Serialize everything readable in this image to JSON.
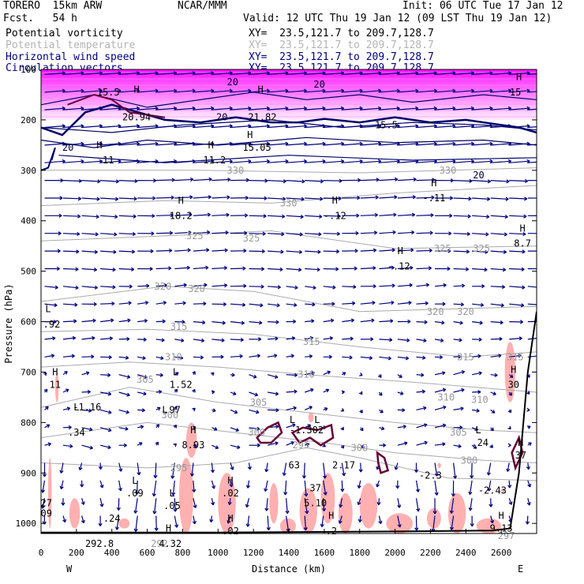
{
  "header": {
    "model": "TORERO  15km ARW",
    "fcst": "Fcst.   54 h",
    "center": "NCAR/MMM",
    "init": "Init: 06 UTC Tue 17 Jan 12",
    "valid": "Valid: 12 UTC Thu 19 Jan 12 (09 LST Thu 19 Jan 12)"
  },
  "legend": [
    {
      "name": "Potential vorticity",
      "xy": "XY=  23.5,121.7 to 209.7,128.7",
      "color": "#000000"
    },
    {
      "name": "Potential temperature",
      "xy": "XY=  23.5,121.7 to 209.7,128.7",
      "color": "#b4b4b4"
    },
    {
      "name": "Horizontal wind speed",
      "xy": "XY=  23.5,121.7 to 209.7,128.7",
      "color": "#000080"
    },
    {
      "name": "Circulation vectors",
      "xy": "XY=  23.5,121.7 to 209.7,128.7",
      "color": "#000080"
    }
  ],
  "chart_data": {
    "type": "cross-section",
    "xlabel": "Distance (km)",
    "ylabel": "Pressure (hPa)",
    "xlim": [
      0,
      2800
    ],
    "ylim": [
      1020,
      100
    ],
    "x_ticks": [
      0,
      200,
      400,
      600,
      800,
      1000,
      1200,
      1400,
      1600,
      1800,
      2000,
      2200,
      2400,
      2600
    ],
    "y_ticks": [
      100,
      200,
      300,
      400,
      500,
      600,
      700,
      800,
      900,
      1000
    ],
    "y_tick_labels": [
      "100",
      "200",
      "300",
      "400",
      "500",
      "600",
      "700",
      "800",
      "900",
      "1000"
    ],
    "left_end": "W",
    "right_end": "E",
    "theta_labels": [
      {
        "x": 1050,
        "p": 300,
        "text": "330"
      },
      {
        "x": 2250,
        "p": 300,
        "text": "330"
      },
      {
        "x": 1350,
        "p": 365,
        "text": "330"
      },
      {
        "x": 820,
        "p": 430,
        "text": "325"
      },
      {
        "x": 1140,
        "p": 435,
        "text": "325"
      },
      {
        "x": 2220,
        "p": 455,
        "text": "325"
      },
      {
        "x": 2440,
        "p": 455,
        "text": "325"
      },
      {
        "x": 640,
        "p": 530,
        "text": "320"
      },
      {
        "x": 830,
        "p": 535,
        "text": "320"
      },
      {
        "x": 2180,
        "p": 580,
        "text": "320"
      },
      {
        "x": 2350,
        "p": 580,
        "text": "320"
      },
      {
        "x": 730,
        "p": 610,
        "text": "315"
      },
      {
        "x": 1480,
        "p": 640,
        "text": "315"
      },
      {
        "x": 2350,
        "p": 670,
        "text": "315"
      },
      {
        "x": 2630,
        "p": 670,
        "text": "315"
      },
      {
        "x": 700,
        "p": 670,
        "text": "310"
      },
      {
        "x": 1450,
        "p": 705,
        "text": "310"
      },
      {
        "x": 2240,
        "p": 750,
        "text": "310"
      },
      {
        "x": 2430,
        "p": 755,
        "text": "310"
      },
      {
        "x": 540,
        "p": 715,
        "text": "305"
      },
      {
        "x": 1180,
        "p": 760,
        "text": "305"
      },
      {
        "x": 2310,
        "p": 820,
        "text": "305"
      },
      {
        "x": 680,
        "p": 785,
        "text": "300"
      },
      {
        "x": 1170,
        "p": 820,
        "text": "300"
      },
      {
        "x": 1750,
        "p": 850,
        "text": "300"
      },
      {
        "x": 2370,
        "p": 875,
        "text": "300"
      },
      {
        "x": 1420,
        "p": 845,
        "text": "295"
      },
      {
        "x": 730,
        "p": 890,
        "text": "295"
      },
      {
        "x": 620,
        "p": 1040,
        "text": "292"
      },
      {
        "x": 2580,
        "p": 1025,
        "text": "297"
      }
    ],
    "speed_labels": [
      {
        "x": 1050,
        "p": 125,
        "text": "20"
      },
      {
        "x": 1540,
        "p": 130,
        "text": "20"
      },
      {
        "x": 990,
        "p": 195,
        "text": "20"
      },
      {
        "x": 120,
        "p": 255,
        "text": "20"
      },
      {
        "x": 2440,
        "p": 310,
        "text": "20"
      }
    ],
    "extrema": [
      {
        "x": 540,
        "p": 140,
        "mark": "H",
        "value": ""
      },
      {
        "x": 380,
        "p": 145,
        "mark": "",
        "value": "15.5"
      },
      {
        "x": 540,
        "p": 195,
        "mark": "",
        "value": "20.94"
      },
      {
        "x": 1240,
        "p": 140,
        "mark": "H",
        "value": ""
      },
      {
        "x": 1250,
        "p": 195,
        "mark": "",
        "value": "21.82"
      },
      {
        "x": 2700,
        "p": 115,
        "mark": "H",
        "value": ""
      },
      {
        "x": 2680,
        "p": 145,
        "mark": "",
        "value": "15"
      },
      {
        "x": 1950,
        "p": 210,
        "mark": "",
        "value": "15.5"
      },
      {
        "x": 330,
        "p": 250,
        "mark": "H",
        "value": ""
      },
      {
        "x": 380,
        "p": 280,
        "mark": "",
        "value": "11"
      },
      {
        "x": 960,
        "p": 250,
        "mark": "H",
        "value": ""
      },
      {
        "x": 980,
        "p": 280,
        "mark": "",
        "value": "11.2"
      },
      {
        "x": 1180,
        "p": 230,
        "mark": "H",
        "value": ""
      },
      {
        "x": 1220,
        "p": 255,
        "mark": "",
        "value": "15.05"
      },
      {
        "x": 790,
        "p": 360,
        "mark": "H",
        "value": ""
      },
      {
        "x": 790,
        "p": 390,
        "mark": "",
        "value": "18.2"
      },
      {
        "x": 1660,
        "p": 360,
        "mark": "H",
        "value": ""
      },
      {
        "x": 1660,
        "p": 390,
        "mark": "",
        "value": "-.12"
      },
      {
        "x": 2220,
        "p": 325,
        "mark": "H",
        "value": ""
      },
      {
        "x": 2220,
        "p": 355,
        "mark": "",
        "value": "-.11"
      },
      {
        "x": 2030,
        "p": 460,
        "mark": "H",
        "value": ""
      },
      {
        "x": 2020,
        "p": 490,
        "mark": "",
        "value": "-.12"
      },
      {
        "x": 2720,
        "p": 415,
        "mark": "H",
        "value": ""
      },
      {
        "x": 2720,
        "p": 445,
        "mark": "",
        "value": "8.7"
      },
      {
        "x": 40,
        "p": 575,
        "mark": "L",
        "value": ""
      },
      {
        "x": 60,
        "p": 605,
        "mark": "",
        "value": ".92"
      },
      {
        "x": 80,
        "p": 700,
        "mark": "H",
        "value": ""
      },
      {
        "x": 80,
        "p": 725,
        "mark": "",
        "value": "11"
      },
      {
        "x": 760,
        "p": 700,
        "mark": "L",
        "value": ""
      },
      {
        "x": 790,
        "p": 725,
        "mark": "",
        "value": "1.52"
      },
      {
        "x": 200,
        "p": 770,
        "mark": "L",
        "value": ""
      },
      {
        "x": 260,
        "p": 770,
        "mark": "",
        "value": "-1.16"
      },
      {
        "x": 700,
        "p": 775,
        "mark": "L",
        "value": ""
      },
      {
        "x": 740,
        "p": 775,
        "mark": "",
        "value": ".97"
      },
      {
        "x": 200,
        "p": 820,
        "mark": "",
        "value": ".34"
      },
      {
        "x": 860,
        "p": 815,
        "mark": "H",
        "value": ""
      },
      {
        "x": 860,
        "p": 845,
        "mark": "",
        "value": "8.93"
      },
      {
        "x": 1420,
        "p": 795,
        "mark": "L",
        "value": ""
      },
      {
        "x": 1560,
        "p": 795,
        "mark": "L",
        "value": ""
      },
      {
        "x": 1500,
        "p": 815,
        "mark": "",
        "value": "-1.302"
      },
      {
        "x": 1430,
        "p": 885,
        "mark": "",
        "value": "63"
      },
      {
        "x": 1710,
        "p": 885,
        "mark": "",
        "value": "2.17"
      },
      {
        "x": 2200,
        "p": 905,
        "mark": "",
        "value": "-2.3"
      },
      {
        "x": 2470,
        "p": 815,
        "mark": "L",
        "value": ""
      },
      {
        "x": 2480,
        "p": 840,
        "mark": "",
        "value": ".24"
      },
      {
        "x": 2710,
        "p": 840,
        "mark": "H",
        "value": ""
      },
      {
        "x": 2710,
        "p": 865,
        "mark": "",
        "value": "37"
      },
      {
        "x": 2670,
        "p": 695,
        "mark": "H",
        "value": ""
      },
      {
        "x": 2670,
        "p": 725,
        "mark": "",
        "value": "30"
      },
      {
        "x": 530,
        "p": 915,
        "mark": "L",
        "value": ""
      },
      {
        "x": 530,
        "p": 940,
        "mark": "",
        "value": ".09"
      },
      {
        "x": 740,
        "p": 940,
        "mark": "L",
        "value": ""
      },
      {
        "x": 740,
        "p": 965,
        "mark": "",
        "value": ".05"
      },
      {
        "x": 1070,
        "p": 915,
        "mark": "H",
        "value": ""
      },
      {
        "x": 1070,
        "p": 940,
        "mark": "",
        "value": ".02"
      },
      {
        "x": 1550,
        "p": 930,
        "mark": "",
        "value": "37"
      },
      {
        "x": 1550,
        "p": 960,
        "mark": "",
        "value": "5.10"
      },
      {
        "x": 2550,
        "p": 935,
        "mark": "",
        "value": "-2.43"
      },
      {
        "x": 30,
        "p": 960,
        "mark": "",
        "value": "27"
      },
      {
        "x": 30,
        "p": 980,
        "mark": "",
        "value": "09"
      },
      {
        "x": 400,
        "p": 990,
        "mark": "",
        "value": ".24"
      },
      {
        "x": 720,
        "p": 1010,
        "mark": "H",
        "value": ""
      },
      {
        "x": 730,
        "p": 1040,
        "mark": "",
        "value": "4.32"
      },
      {
        "x": 1070,
        "p": 990,
        "mark": "H",
        "value": ""
      },
      {
        "x": 1070,
        "p": 1015,
        "mark": "",
        "value": ".02"
      },
      {
        "x": 1640,
        "p": 985,
        "mark": "H",
        "value": ""
      },
      {
        "x": 1640,
        "p": 1015,
        "mark": "",
        "value": ".2"
      },
      {
        "x": 2600,
        "p": 985,
        "mark": "H",
        "value": ""
      },
      {
        "x": 2600,
        "p": 1010,
        "mark": "",
        "value": "9.13"
      },
      {
        "x": 330,
        "p": 1040,
        "mark": "",
        "value": "292.8"
      }
    ],
    "pv_fill_color": "#ffb0b0",
    "stratosphere_color": "#ff40ff",
    "theta_color": "#aaaaaa",
    "vector_color": "#000080",
    "speed_contour_color": "#00006a",
    "pv_contour_color": "#660033",
    "terrain_color": "#000000"
  }
}
